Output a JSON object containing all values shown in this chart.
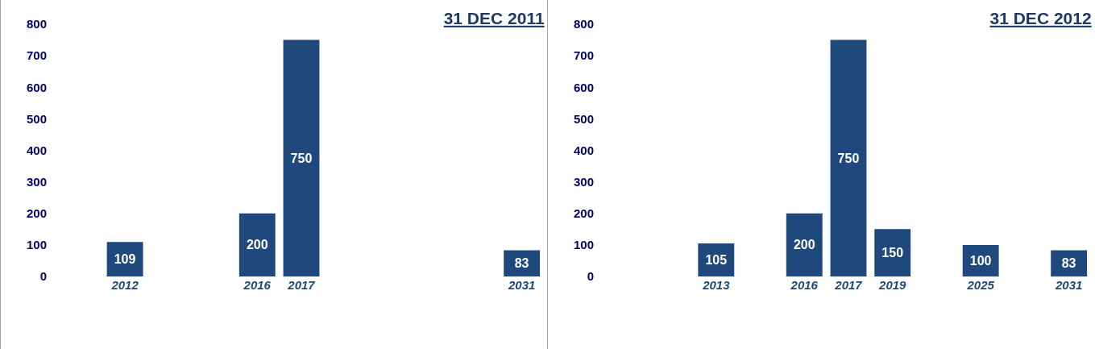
{
  "chart_data": [
    {
      "type": "bar",
      "title": "31 DEC 2011",
      "categories": [
        null,
        "2012",
        null,
        null,
        "2016",
        "2017",
        null,
        null,
        null,
        null,
        "2031"
      ],
      "series": [
        {
          "color": "#1f497d",
          "values": [
            null,
            109,
            null,
            null,
            200,
            750,
            null,
            null,
            null,
            null,
            83
          ]
        }
      ],
      "ylim": [
        0,
        800
      ],
      "yticks": [
        0,
        100,
        200,
        300,
        400,
        500,
        600,
        700,
        800
      ],
      "data_labels": true
    },
    {
      "type": "bar",
      "title": "31 DEC 2012",
      "categories": [
        null,
        null,
        "2013",
        null,
        "2016",
        "2017",
        "2019",
        null,
        "2025",
        null,
        "2031"
      ],
      "series": [
        {
          "color": "#1f497d",
          "values": [
            null,
            null,
            105,
            null,
            200,
            750,
            150,
            null,
            100,
            null,
            83
          ]
        }
      ],
      "ylim": [
        0,
        800
      ],
      "yticks": [
        0,
        100,
        200,
        300,
        400,
        500,
        600,
        700,
        800
      ],
      "data_labels": true
    }
  ]
}
